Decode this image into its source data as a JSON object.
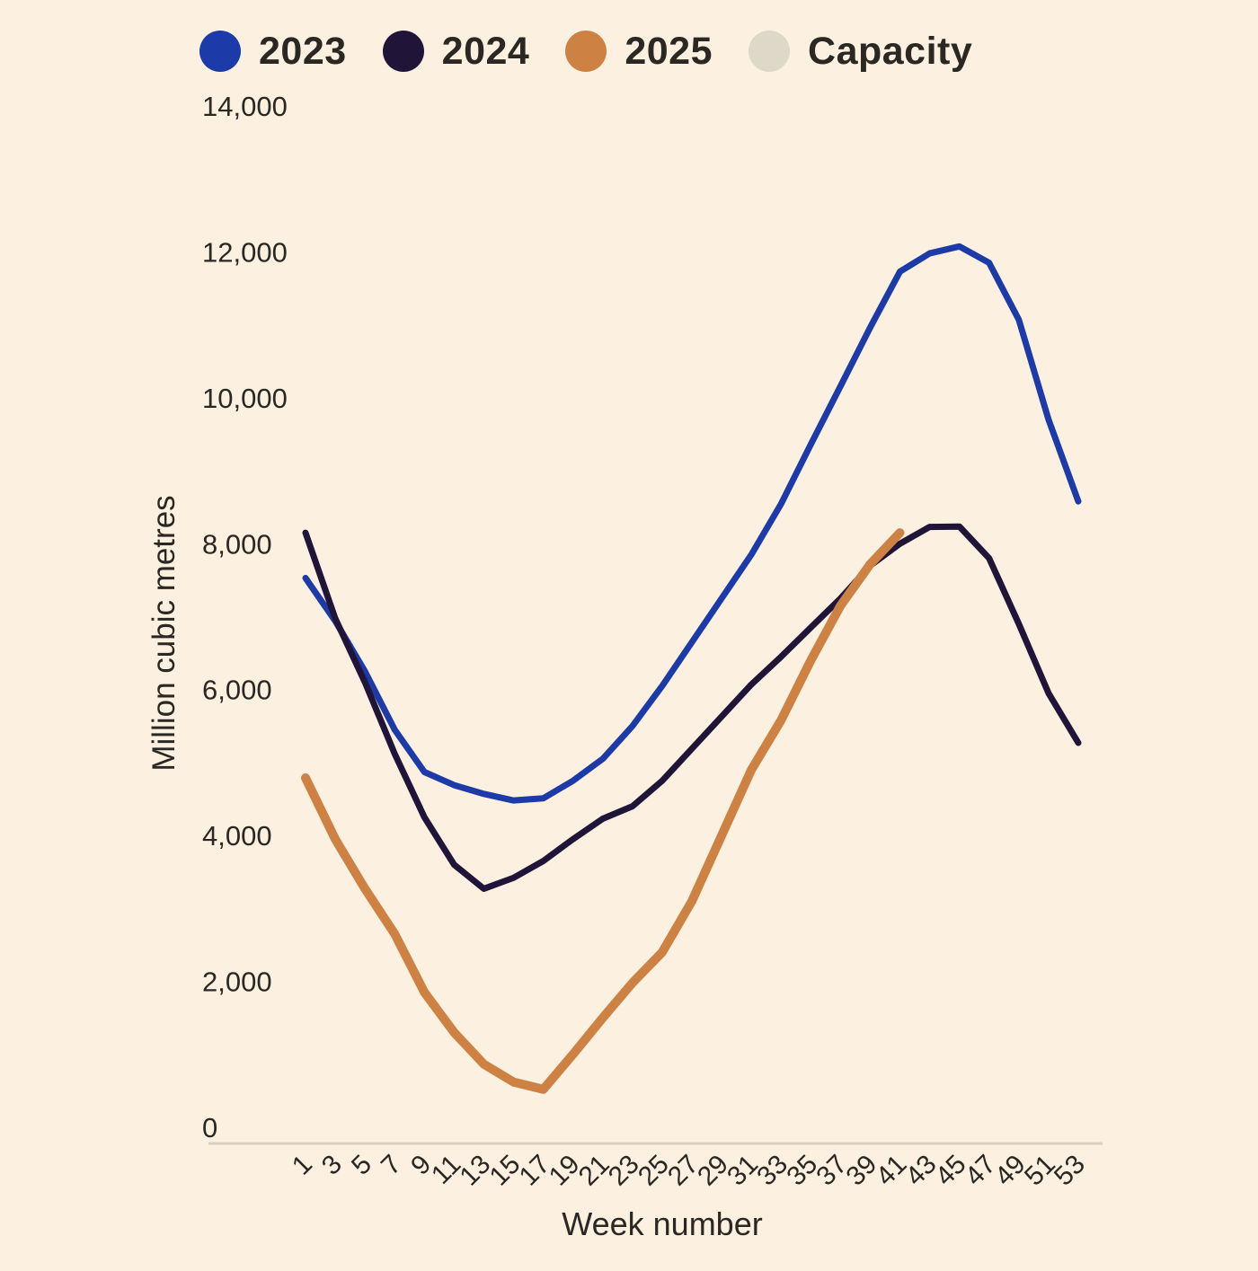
{
  "colors": {
    "background": "#fcf1e0",
    "axis_line": "#d8d1bf",
    "text": "#2b2723"
  },
  "chart_data": {
    "type": "line",
    "title": "",
    "xlabel": "Week number",
    "ylabel": "Million cubic metres",
    "legend_position": "top",
    "grid": false,
    "ylim": [
      0,
      14000
    ],
    "ytick_step": 2000,
    "ytick_labels": [
      "0",
      "2,000",
      "4,000",
      "6,000",
      "8,000",
      "10,000",
      "12,000",
      "14,000"
    ],
    "weeks": [
      1,
      3,
      5,
      7,
      9,
      11,
      13,
      15,
      17,
      19,
      21,
      23,
      25,
      27,
      29,
      31,
      33,
      35,
      37,
      39,
      41,
      43,
      45,
      47,
      49,
      51,
      53
    ],
    "series": [
      {
        "name": "2023",
        "color": "#1c3ba8",
        "line_width": 7,
        "values": [
          7530,
          6940,
          6250,
          5450,
          4870,
          4690,
          4570,
          4480,
          4510,
          4750,
          5050,
          5500,
          6050,
          6650,
          7250,
          7850,
          8545,
          9360,
          10160,
          10965,
          11730,
          11980,
          12075,
          11850,
          11070,
          9700,
          8580
        ]
      },
      {
        "name": "2024",
        "color": "#201539",
        "line_width": 7,
        "values": [
          8150,
          6975,
          6100,
          5120,
          4250,
          3600,
          3270,
          3420,
          3650,
          3950,
          4230,
          4400,
          4750,
          5190,
          5630,
          6070,
          6450,
          6850,
          7250,
          7700,
          8000,
          8230,
          8235,
          7800,
          6900,
          5950,
          5270
        ]
      },
      {
        "name": "2025",
        "color": "#cd8142",
        "line_width": 10,
        "values": [
          4790,
          3950,
          3270,
          2650,
          1850,
          1300,
          865,
          620,
          520,
          1000,
          1500,
          1980,
          2400,
          3100,
          4000,
          4900,
          5580,
          6400,
          7150,
          7720,
          8150
        ]
      },
      {
        "name": "Capacity",
        "color": "#ded8c9",
        "line_width": 7,
        "values": []
      }
    ]
  }
}
